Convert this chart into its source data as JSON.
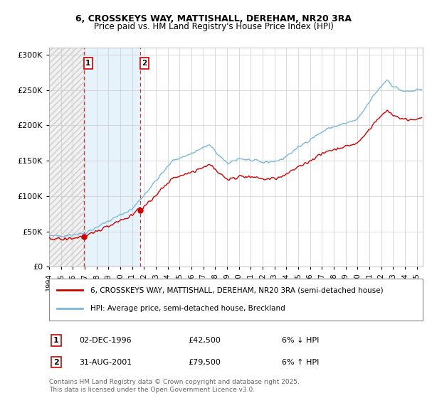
{
  "title": "6, CROSSKEYS WAY, MATTISHALL, DEREHAM, NR20 3RA",
  "subtitle": "Price paid vs. HM Land Registry's House Price Index (HPI)",
  "legend_line1": "6, CROSSKEYS WAY, MATTISHALL, DEREHAM, NR20 3RA (semi-detached house)",
  "legend_line2": "HPI: Average price, semi-detached house, Breckland",
  "footer": "Contains HM Land Registry data © Crown copyright and database right 2025.\nThis data is licensed under the Open Government Licence v3.0.",
  "sale1_label": "1",
  "sale1_date": "02-DEC-1996",
  "sale1_price": "£42,500",
  "sale1_hpi": "6% ↓ HPI",
  "sale2_label": "2",
  "sale2_date": "31-AUG-2001",
  "sale2_price": "£79,500",
  "sale2_hpi": "6% ↑ HPI",
  "hpi_color": "#7ab8d8",
  "price_color": "#cc0000",
  "marker_color": "#cc0000",
  "vline_color": "#cc3333",
  "shade_color": "#ddeef8",
  "ylim": [
    0,
    310000
  ],
  "yticks": [
    0,
    50000,
    100000,
    150000,
    200000,
    250000,
    300000
  ],
  "xlim_start": 1994.0,
  "xlim_end": 2025.5,
  "sale1_x": 1996.917,
  "sale1_y": 42500,
  "sale2_x": 2001.667,
  "sale2_y": 79500,
  "bg_color": "#f5f5f5",
  "plot_bg": "#ffffff"
}
